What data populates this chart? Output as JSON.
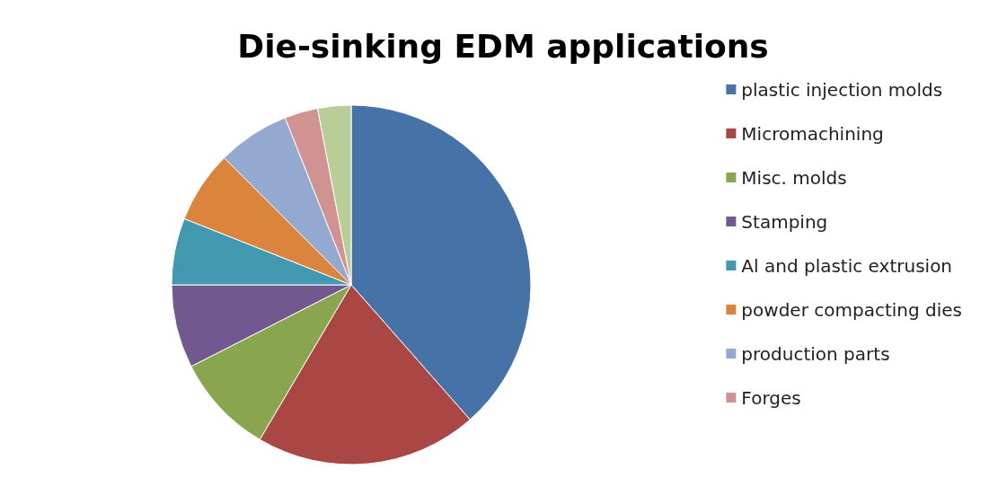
{
  "chart_data": {
    "type": "pie",
    "title": "Die-sinking EDM applications",
    "categories": [
      "plastic injection molds",
      "Micromachining",
      "Misc. molds",
      "Stamping",
      "Al and plastic extrusion",
      "powder compacting dies",
      "production parts",
      "Forges",
      null
    ],
    "values": [
      38.5,
      20,
      9,
      7.5,
      6,
      6.5,
      6.5,
      3,
      3
    ],
    "colors": [
      "#4572a7",
      "#aa4643",
      "#89a54e",
      "#71588f",
      "#4198af",
      "#db843d",
      "#93a9cf",
      "#d19392",
      "#b9cd96"
    ],
    "legend": "right"
  }
}
